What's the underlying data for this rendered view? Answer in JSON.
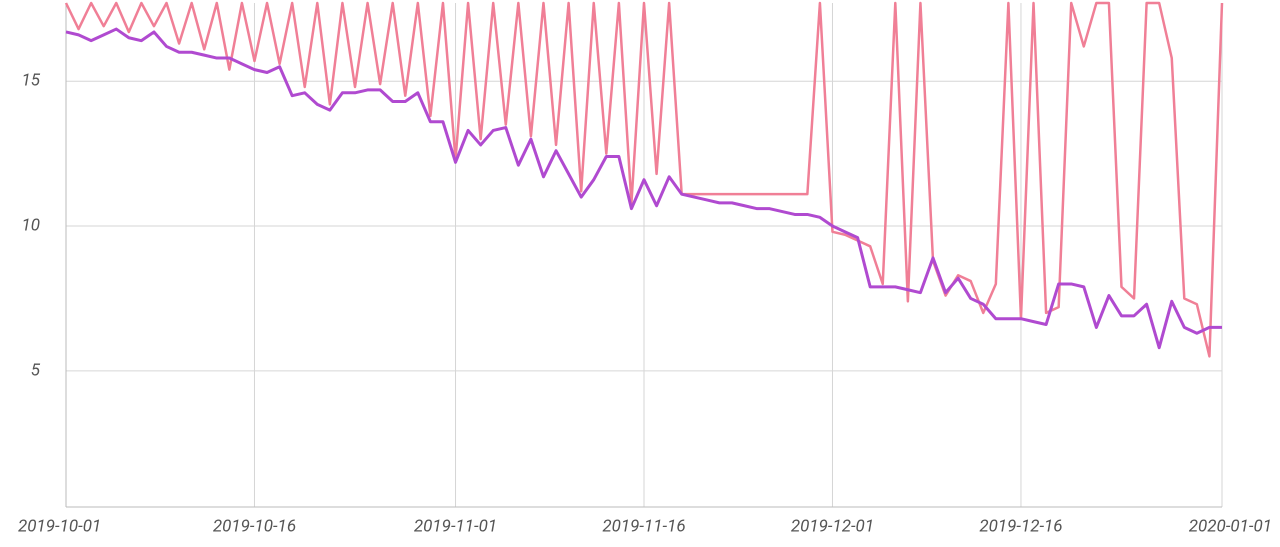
{
  "chart_data": {
    "type": "line",
    "x": [
      "2019-10-01",
      "2019-10-02",
      "2019-10-03",
      "2019-10-04",
      "2019-10-05",
      "2019-10-06",
      "2019-10-07",
      "2019-10-08",
      "2019-10-09",
      "2019-10-10",
      "2019-10-11",
      "2019-10-12",
      "2019-10-13",
      "2019-10-14",
      "2019-10-15",
      "2019-10-16",
      "2019-10-17",
      "2019-10-18",
      "2019-10-19",
      "2019-10-20",
      "2019-10-21",
      "2019-10-22",
      "2019-10-23",
      "2019-10-24",
      "2019-10-25",
      "2019-10-26",
      "2019-10-27",
      "2019-10-28",
      "2019-10-29",
      "2019-10-30",
      "2019-10-31",
      "2019-11-01",
      "2019-11-02",
      "2019-11-03",
      "2019-11-04",
      "2019-11-05",
      "2019-11-06",
      "2019-11-07",
      "2019-11-08",
      "2019-11-09",
      "2019-11-10",
      "2019-11-11",
      "2019-11-12",
      "2019-11-13",
      "2019-11-14",
      "2019-11-15",
      "2019-11-16",
      "2019-11-17",
      "2019-11-18",
      "2019-11-19",
      "2019-11-20",
      "2019-11-21",
      "2019-11-22",
      "2019-11-23",
      "2019-11-24",
      "2019-11-25",
      "2019-11-26",
      "2019-11-27",
      "2019-11-28",
      "2019-11-29",
      "2019-11-30",
      "2019-12-01",
      "2019-12-02",
      "2019-12-03",
      "2019-12-04",
      "2019-12-05",
      "2019-12-06",
      "2019-12-07",
      "2019-12-08",
      "2019-12-09",
      "2019-12-10",
      "2019-12-11",
      "2019-12-12",
      "2019-12-13",
      "2019-12-14",
      "2019-12-15",
      "2019-12-16",
      "2019-12-17",
      "2019-12-18",
      "2019-12-19",
      "2019-12-20",
      "2019-12-21",
      "2019-12-22",
      "2019-12-23",
      "2019-12-24",
      "2019-12-25",
      "2019-12-26",
      "2019-12-27",
      "2019-12-28",
      "2019-12-29",
      "2019-12-30",
      "2019-12-31",
      "2020-01-01"
    ],
    "series": [
      {
        "color": "#f07f96",
        "values": [
          17.7,
          16.8,
          17.7,
          16.9,
          17.7,
          16.7,
          17.7,
          16.9,
          17.7,
          16.3,
          17.7,
          16.1,
          17.7,
          15.4,
          17.7,
          15.7,
          17.7,
          15.6,
          17.7,
          14.8,
          17.7,
          14.2,
          17.7,
          14.8,
          17.7,
          14.9,
          17.7,
          14.5,
          17.7,
          13.8,
          17.7,
          12.3,
          17.7,
          13.0,
          17.7,
          13.5,
          17.7,
          13.1,
          17.7,
          12.8,
          17.7,
          11.2,
          17.7,
          12.5,
          17.7,
          10.8,
          17.7,
          11.8,
          17.7,
          11.1,
          11.1,
          11.1,
          11.1,
          11.1,
          11.1,
          11.1,
          11.1,
          11.1,
          11.1,
          11.1,
          17.7,
          9.8,
          9.7,
          9.5,
          9.3,
          8.0,
          17.7,
          7.4,
          17.7,
          8.8,
          7.6,
          8.3,
          8.1,
          7.0,
          8.0,
          17.7,
          6.8,
          17.7,
          7.0,
          7.2,
          17.7,
          16.2,
          17.7,
          17.7,
          7.9,
          7.5,
          17.7,
          17.7,
          15.8,
          7.5,
          7.3,
          5.5,
          17.7
        ]
      },
      {
        "color": "#b04ad0",
        "values": [
          16.7,
          16.6,
          16.4,
          16.6,
          16.8,
          16.5,
          16.4,
          16.7,
          16.2,
          16.0,
          16.0,
          15.9,
          15.8,
          15.8,
          15.6,
          15.4,
          15.3,
          15.5,
          14.5,
          14.6,
          14.2,
          14.0,
          14.6,
          14.6,
          14.7,
          14.7,
          14.3,
          14.3,
          14.6,
          13.6,
          13.6,
          12.2,
          13.3,
          12.8,
          13.3,
          13.4,
          12.1,
          13.0,
          11.7,
          12.6,
          11.8,
          11.0,
          11.6,
          12.4,
          12.4,
          10.6,
          11.6,
          10.7,
          11.7,
          11.1,
          11.0,
          10.9,
          10.8,
          10.8,
          10.7,
          10.6,
          10.6,
          10.5,
          10.4,
          10.4,
          10.3,
          10.0,
          9.8,
          9.6,
          7.9,
          7.9,
          7.9,
          7.8,
          7.7,
          8.9,
          7.7,
          8.2,
          7.5,
          7.3,
          6.8,
          6.8,
          6.8,
          6.7,
          6.6,
          8.0,
          8.0,
          7.9,
          6.5,
          7.6,
          6.9,
          6.9,
          7.3,
          5.8,
          7.4,
          6.5,
          6.3,
          6.5,
          6.5
        ]
      }
    ],
    "xlim": [
      "2019-10-01",
      "2020-01-01"
    ],
    "xticks": [
      "2019-10-01",
      "2019-10-16",
      "2019-11-01",
      "2019-11-16",
      "2019-12-01",
      "2019-12-16",
      "2020-01-01"
    ],
    "ylim": [
      0.3,
      17.7
    ],
    "yticks": [
      5,
      10,
      15
    ],
    "grid": true
  }
}
